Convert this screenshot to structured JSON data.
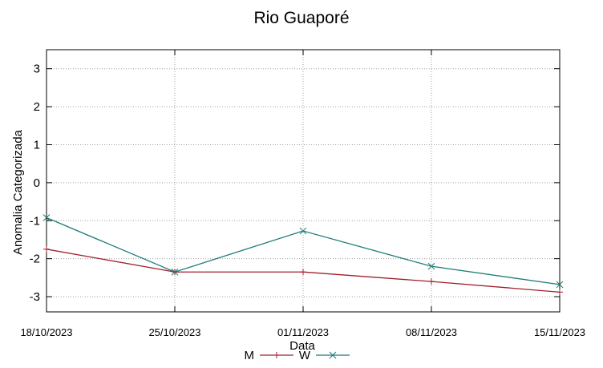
{
  "chart_data": {
    "type": "line",
    "title": "Rio Guaporé",
    "xlabel": "Data",
    "ylabel": "Anomalia Categorizada",
    "categories": [
      "18/10/2023",
      "25/10/2023",
      "01/11/2023",
      "08/11/2023",
      "15/11/2023"
    ],
    "yticks": [
      "3",
      "2",
      "1",
      "0",
      "-1",
      "-2",
      "-3"
    ],
    "ylim": [
      -3.4,
      3.5
    ],
    "grid": true,
    "legend_position": "bottom",
    "series": [
      {
        "name": "M",
        "color": "#a0202a",
        "marker": "plus",
        "values": [
          -1.75,
          -2.35,
          -2.35,
          -2.6,
          -2.88
        ]
      },
      {
        "name": "W",
        "color": "#1e7a7a",
        "marker": "cross",
        "values": [
          -0.92,
          -2.35,
          -1.27,
          -2.2,
          -2.68
        ]
      }
    ]
  }
}
